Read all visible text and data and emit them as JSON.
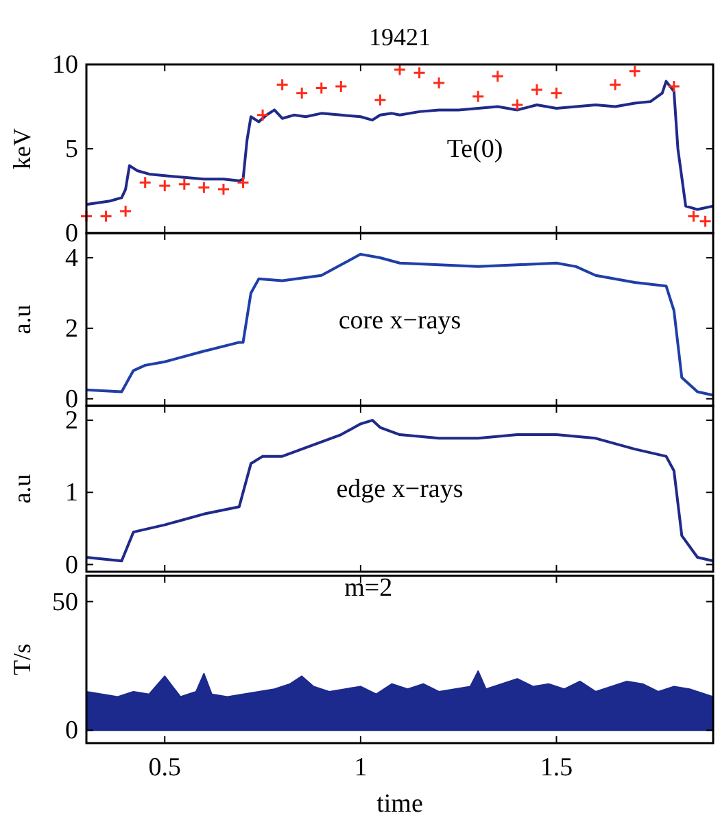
{
  "chart_data": [
    {
      "type": "line",
      "title": "19421",
      "ylabel": "keV",
      "xlim": [
        0.3,
        1.9
      ],
      "xticks": [
        0.5,
        1,
        1.5
      ],
      "ylim": [
        0,
        10
      ],
      "yticks": [
        0,
        5,
        10
      ],
      "tick_labels": "y",
      "grid": false,
      "series": [
        {
          "name": "Te(0)",
          "color": "#1f2a8a",
          "x": [
            0.3,
            0.33,
            0.36,
            0.39,
            0.4,
            0.41,
            0.43,
            0.46,
            0.5,
            0.55,
            0.6,
            0.65,
            0.69,
            0.7,
            0.71,
            0.72,
            0.74,
            0.76,
            0.78,
            0.8,
            0.83,
            0.86,
            0.9,
            0.95,
            1.0,
            1.03,
            1.05,
            1.08,
            1.1,
            1.15,
            1.2,
            1.25,
            1.3,
            1.35,
            1.4,
            1.45,
            1.5,
            1.55,
            1.6,
            1.65,
            1.7,
            1.74,
            1.77,
            1.78,
            1.8,
            1.81,
            1.83,
            1.86,
            1.9
          ],
          "values": [
            1.7,
            1.8,
            1.9,
            2.1,
            2.6,
            4.0,
            3.7,
            3.5,
            3.4,
            3.3,
            3.2,
            3.2,
            3.1,
            3.2,
            5.5,
            6.9,
            6.6,
            7.0,
            7.3,
            6.8,
            7.0,
            6.9,
            7.1,
            7.0,
            6.9,
            6.7,
            7.0,
            7.1,
            7.0,
            7.2,
            7.3,
            7.3,
            7.4,
            7.5,
            7.3,
            7.6,
            7.4,
            7.5,
            7.6,
            7.5,
            7.7,
            7.8,
            8.3,
            9.0,
            8.4,
            5.0,
            1.6,
            1.4,
            1.6
          ]
        },
        {
          "type": "scatter",
          "marker": "cross",
          "color": "#ff2a1a",
          "x": [
            0.3,
            0.35,
            0.4,
            0.45,
            0.5,
            0.55,
            0.6,
            0.65,
            0.7,
            0.75,
            0.8,
            0.85,
            0.9,
            0.95,
            1.05,
            1.1,
            1.15,
            1.2,
            1.3,
            1.35,
            1.4,
            1.45,
            1.5,
            1.65,
            1.7,
            1.8,
            1.85,
            1.88
          ],
          "values": [
            1.0,
            1.0,
            1.3,
            3.0,
            2.8,
            2.9,
            2.7,
            2.6,
            3.0,
            7.0,
            8.8,
            8.3,
            8.6,
            8.7,
            7.9,
            9.7,
            9.5,
            8.9,
            8.1,
            9.3,
            7.6,
            8.5,
            8.3,
            8.8,
            9.6,
            8.7,
            1.0,
            0.7
          ]
        }
      ]
    },
    {
      "type": "line",
      "ylabel": "a.u",
      "xlim": [
        0.3,
        1.9
      ],
      "xticks": [
        0.5,
        1,
        1.5
      ],
      "ylim": [
        -0.2,
        4.7
      ],
      "yticks": [
        0,
        2,
        4
      ],
      "tick_labels": "y",
      "grid": false,
      "series": [
        {
          "name": "core x−rays",
          "color": "#1f3fa8",
          "x": [
            0.3,
            0.39,
            0.42,
            0.45,
            0.5,
            0.6,
            0.69,
            0.7,
            0.72,
            0.74,
            0.8,
            0.9,
            0.95,
            1.0,
            1.05,
            1.1,
            1.2,
            1.3,
            1.4,
            1.5,
            1.55,
            1.6,
            1.7,
            1.78,
            1.8,
            1.82,
            1.86,
            1.9
          ],
          "values": [
            0.25,
            0.2,
            0.8,
            0.95,
            1.05,
            1.35,
            1.6,
            1.6,
            3.0,
            3.4,
            3.35,
            3.5,
            3.8,
            4.1,
            4.0,
            3.85,
            3.8,
            3.75,
            3.8,
            3.85,
            3.75,
            3.5,
            3.3,
            3.2,
            2.5,
            0.6,
            0.2,
            0.1
          ]
        }
      ]
    },
    {
      "type": "line",
      "ylabel": "a.u",
      "xlim": [
        0.3,
        1.9
      ],
      "xticks": [
        0.5,
        1,
        1.5
      ],
      "ylim": [
        -0.1,
        2.2
      ],
      "yticks": [
        0,
        1,
        2
      ],
      "tick_labels": "y",
      "grid": false,
      "series": [
        {
          "name": "edge x−rays",
          "color": "#1f2a8a",
          "x": [
            0.3,
            0.39,
            0.42,
            0.5,
            0.6,
            0.69,
            0.72,
            0.75,
            0.8,
            0.85,
            0.9,
            0.95,
            1.0,
            1.03,
            1.05,
            1.1,
            1.2,
            1.3,
            1.4,
            1.5,
            1.6,
            1.7,
            1.78,
            1.8,
            1.82,
            1.86,
            1.9
          ],
          "values": [
            0.1,
            0.05,
            0.45,
            0.55,
            0.7,
            0.8,
            1.4,
            1.5,
            1.5,
            1.6,
            1.7,
            1.8,
            1.95,
            2.0,
            1.9,
            1.8,
            1.75,
            1.75,
            1.8,
            1.8,
            1.75,
            1.6,
            1.5,
            1.3,
            0.4,
            0.1,
            0.05
          ]
        }
      ]
    },
    {
      "type": "area",
      "ylabel": "T/s",
      "xlabel": "time",
      "xlim": [
        0.3,
        1.9
      ],
      "xticks": [
        0.5,
        1,
        1.5
      ],
      "ylim": [
        -5,
        60
      ],
      "yticks": [
        0,
        50
      ],
      "grid": false,
      "series": [
        {
          "name": "m=2",
          "color": "#1b2a8c",
          "x": [
            0.3,
            0.34,
            0.38,
            0.42,
            0.46,
            0.5,
            0.54,
            0.58,
            0.6,
            0.62,
            0.66,
            0.7,
            0.74,
            0.78,
            0.82,
            0.85,
            0.88,
            0.92,
            0.96,
            1.0,
            1.04,
            1.08,
            1.12,
            1.16,
            1.2,
            1.24,
            1.28,
            1.3,
            1.32,
            1.36,
            1.4,
            1.44,
            1.48,
            1.52,
            1.56,
            1.6,
            1.64,
            1.68,
            1.72,
            1.76,
            1.8,
            1.84,
            1.88,
            1.9
          ],
          "values": [
            15,
            14,
            13,
            15,
            14,
            21,
            13,
            15,
            22,
            14,
            13,
            14,
            15,
            16,
            18,
            21,
            17,
            15,
            16,
            17,
            14,
            18,
            16,
            18,
            15,
            16,
            17,
            23,
            16,
            18,
            20,
            17,
            18,
            16,
            19,
            15,
            17,
            19,
            18,
            15,
            17,
            16,
            14,
            13
          ]
        }
      ]
    }
  ]
}
